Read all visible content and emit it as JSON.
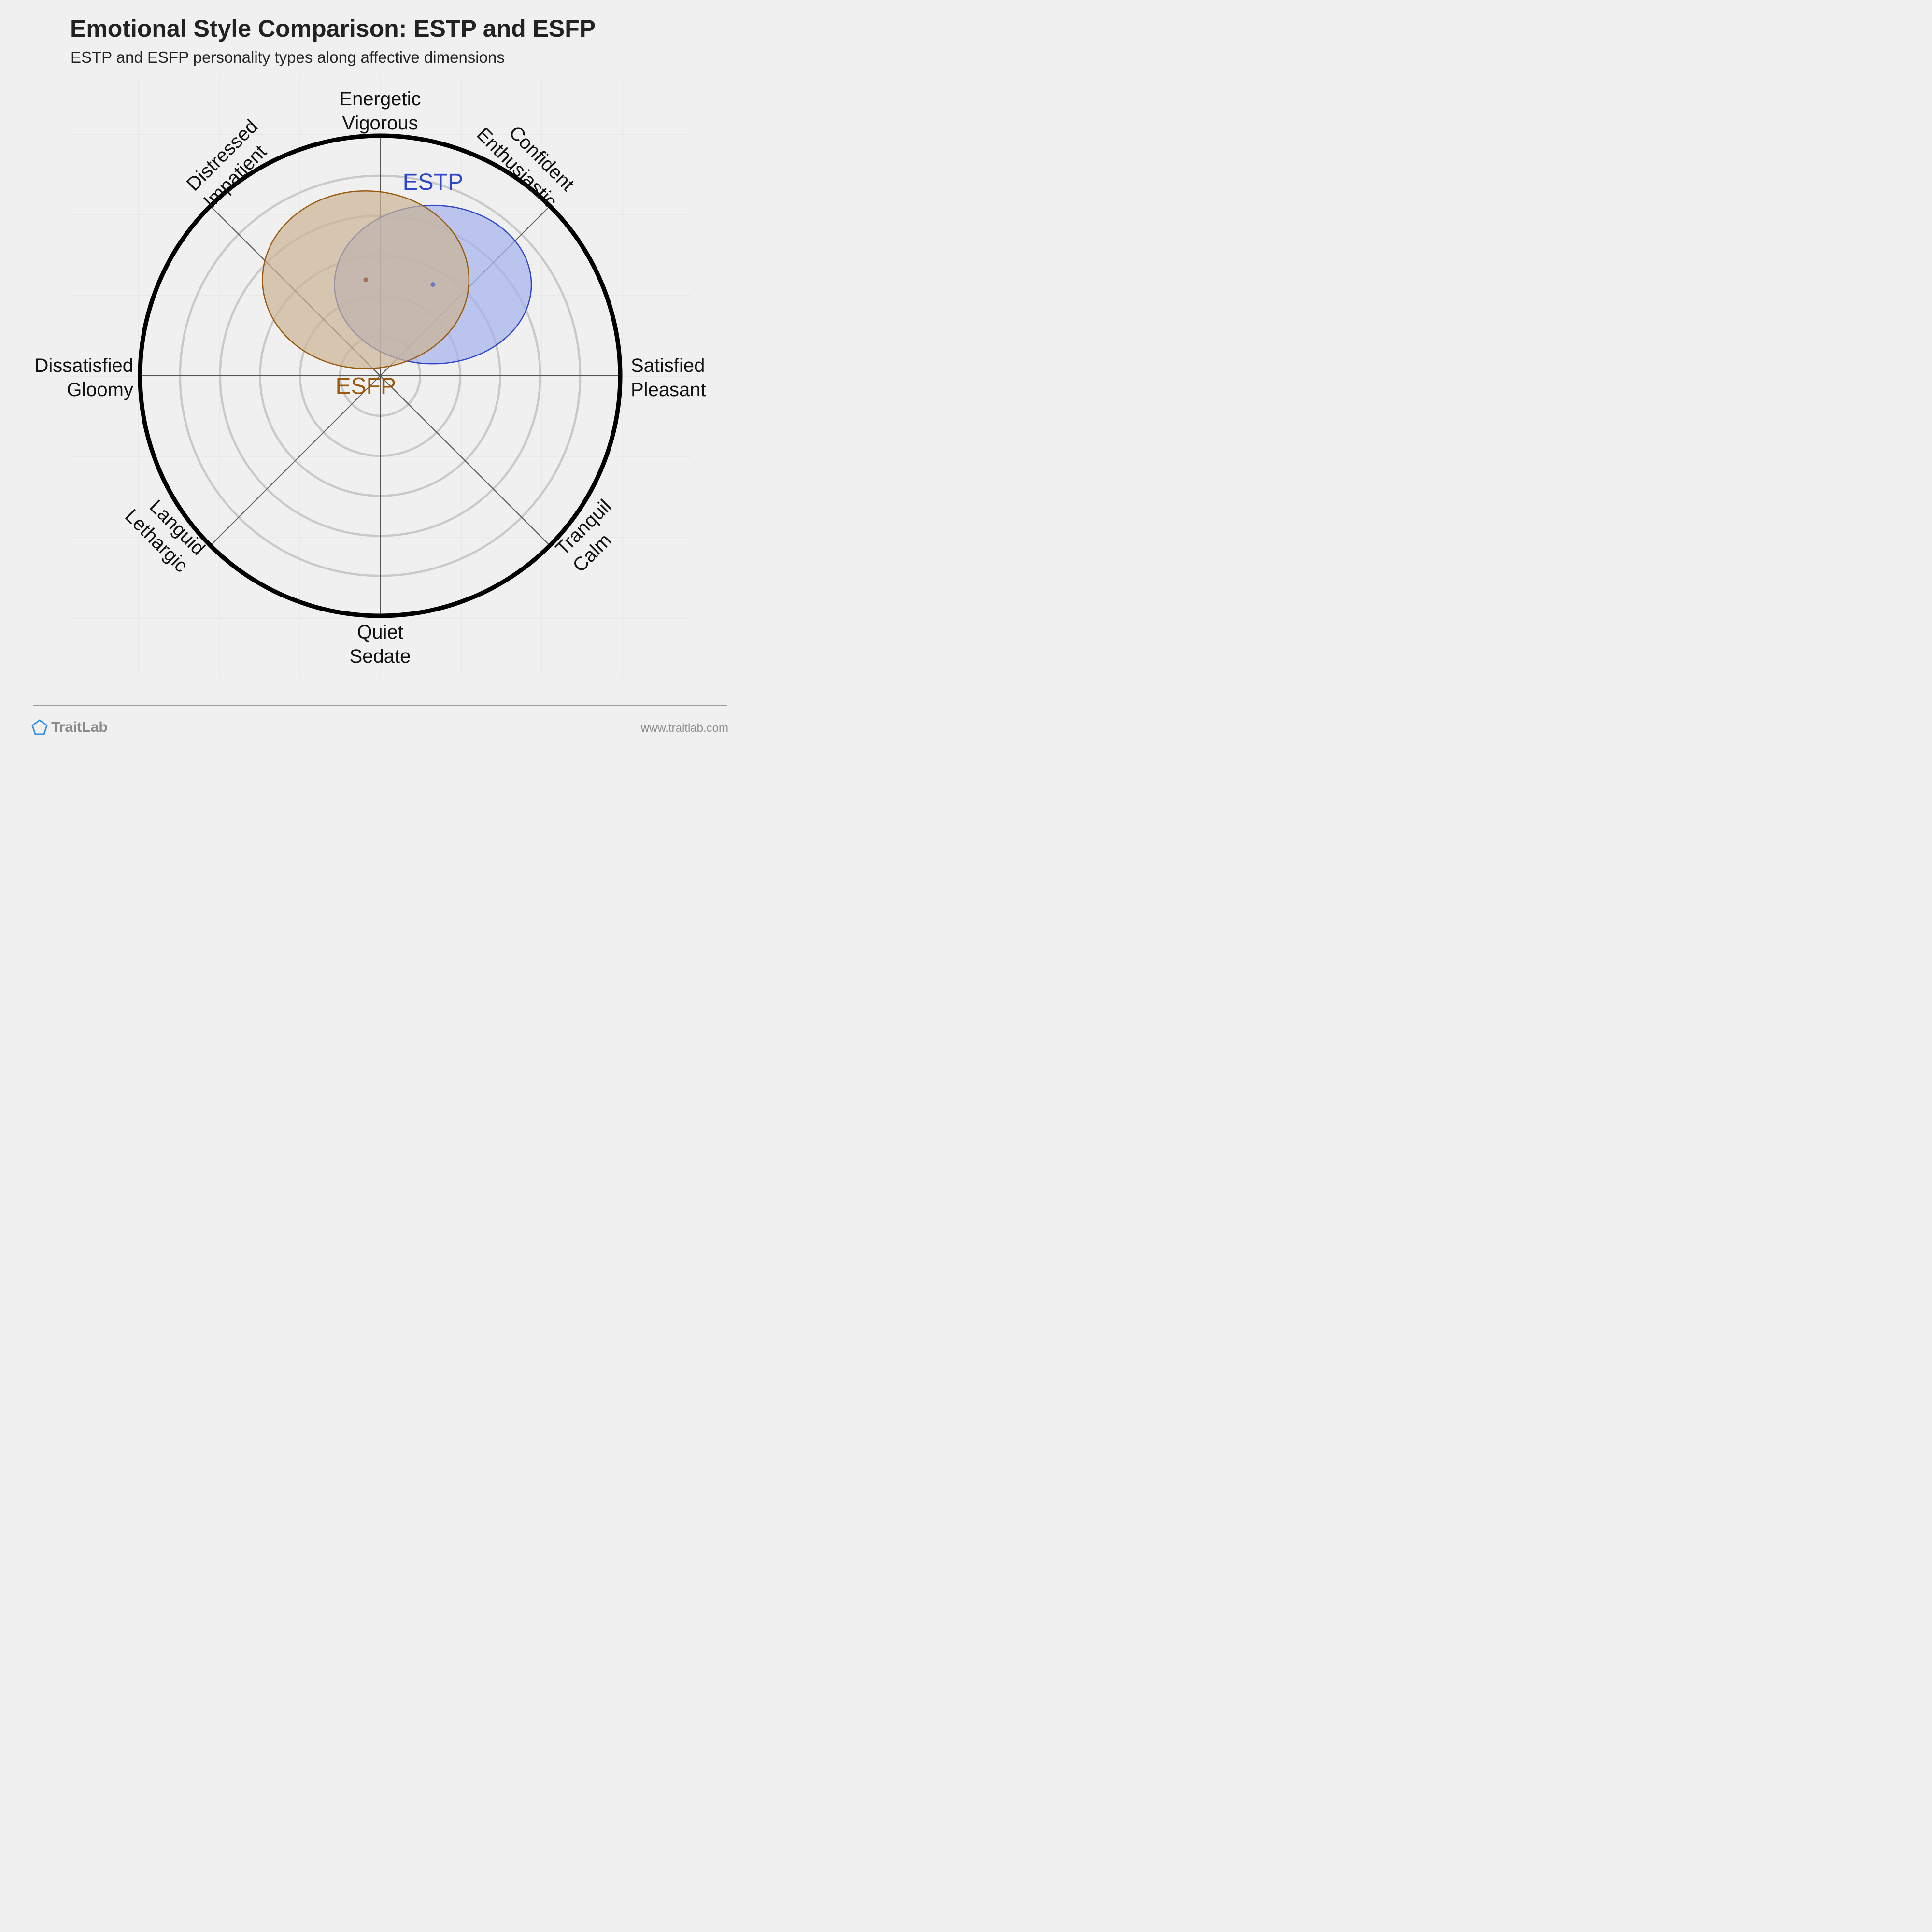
{
  "title": "Emotional Style Comparison: ESTP and ESFP",
  "subtitle": "ESTP and ESFP personality types along affective dimensions",
  "footer": {
    "brand": "TraitLab",
    "url": "www.traitlab.com"
  },
  "colors": {
    "background": "#f0f0f0",
    "ring": "#c9c9c9",
    "outer_ring": "#000000",
    "spoke": "#555555",
    "estp_stroke": "#2f46c8",
    "estp_fill": "#a3b0e9",
    "esfp_stroke": "#9a5a0e",
    "esfp_fill": "#cbb394",
    "brand_icon": "#3a8ee0"
  },
  "chart_data": {
    "type": "scatter",
    "title": "Emotional Style Comparison: ESTP and ESFP",
    "subtitle": "ESTP and ESFP personality types along affective dimensions",
    "x_range": [
      -1,
      1
    ],
    "y_range": [
      -1,
      1
    ],
    "rings": 6,
    "axes": [
      {
        "angle_deg": 90,
        "lines": [
          "Energetic",
          "Vigorous"
        ]
      },
      {
        "angle_deg": 45,
        "lines": [
          "Confident",
          "Enthusiastic"
        ]
      },
      {
        "angle_deg": 0,
        "lines": [
          "Satisfied",
          "Pleasant"
        ]
      },
      {
        "angle_deg": -45,
        "lines": [
          "Tranquil",
          "Calm"
        ]
      },
      {
        "angle_deg": -90,
        "lines": [
          "Quiet",
          "Sedate"
        ]
      },
      {
        "angle_deg": -135,
        "lines": [
          "Languid",
          "Lethargic"
        ]
      },
      {
        "angle_deg": 180,
        "lines": [
          "Dissatisfied",
          "Gloomy"
        ]
      },
      {
        "angle_deg": 135,
        "lines": [
          "Distressed",
          "Impatient"
        ]
      }
    ],
    "series": [
      {
        "name": "ESTP",
        "x": 0.22,
        "y": 0.38,
        "x_spread": 0.41,
        "y_spread": 0.33
      },
      {
        "name": "ESFP",
        "x": -0.06,
        "y": 0.4,
        "x_spread": 0.43,
        "y_spread": 0.37
      }
    ]
  }
}
